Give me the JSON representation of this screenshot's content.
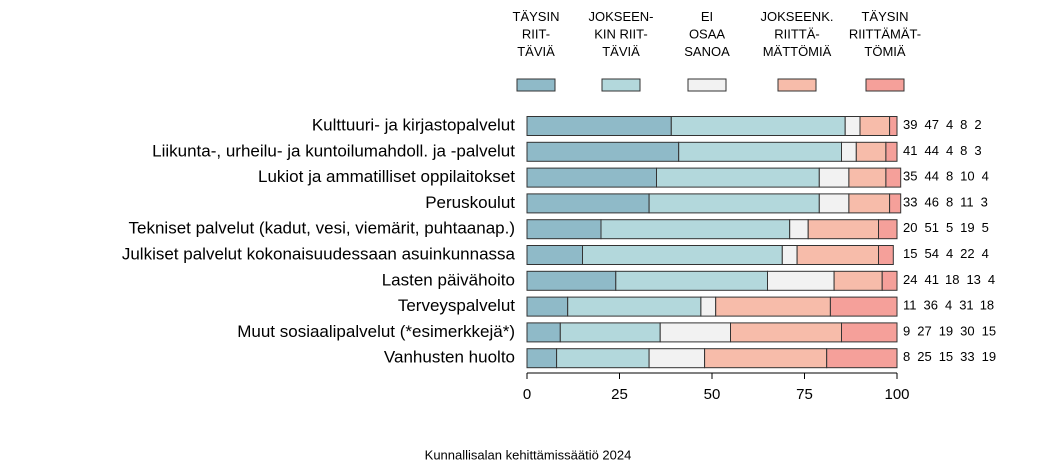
{
  "chart_data": {
    "type": "stacked-bar-horizontal",
    "categories": [
      "Kulttuuri- ja kirjastopalvelut",
      "Liikunta-, urheilu- ja kuntoilumahdoll. ja -palvelut",
      "Lukiot ja ammatilliset oppilaitokset",
      "Peruskoulut",
      "Tekniset palvelut (kadut, vesi, viemärit, puhtaanap.)",
      "Julkiset palvelut kokonaisuudessaan asuinkunnassa",
      "Lasten päivähoito",
      "Terveyspalvelut",
      "Muut sosiaalipalvelut (*esimerkkejä*)",
      "Vanhusten huolto"
    ],
    "series": [
      {
        "name": "TÄYSIN\nRIIT-\nTÄVIÄ",
        "color": "#8fbac8",
        "values": [
          39,
          41,
          35,
          33,
          20,
          15,
          24,
          11,
          9,
          8
        ]
      },
      {
        "name": "JOKSEEN-\nKIN RIIT-\nTÄVIÄ",
        "color": "#b3d8dc",
        "values": [
          47,
          44,
          44,
          46,
          51,
          54,
          41,
          36,
          27,
          25
        ]
      },
      {
        "name": "EI\nOSAA\nSANOA",
        "color": "#f2f2f2",
        "values": [
          4,
          4,
          8,
          8,
          5,
          4,
          18,
          4,
          19,
          15
        ]
      },
      {
        "name": "JOKSEENK.\nRIITTÄ-\nMÄTTÖMIÄ",
        "color": "#f7bcaa",
        "values": [
          8,
          8,
          10,
          11,
          19,
          22,
          13,
          31,
          30,
          33
        ]
      },
      {
        "name": "TÄYSIN\nRIITTÄMÄT-\nTÖMIÄ",
        "color": "#f5a09a",
        "values": [
          2,
          3,
          4,
          3,
          5,
          4,
          4,
          18,
          15,
          19
        ]
      }
    ],
    "xlim": [
      0,
      100
    ],
    "xticks": [
      0,
      25,
      50,
      75,
      100
    ],
    "footer": "Kunnallisalan kehittämissäätiö 2024"
  }
}
